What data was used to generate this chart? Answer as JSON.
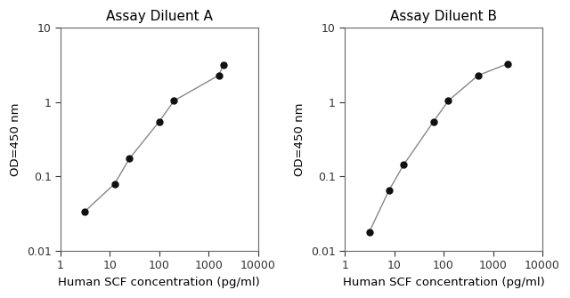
{
  "panel_A": {
    "title": "Assay Diluent A",
    "x": [
      3.13,
      12.5,
      25,
      100,
      200,
      1600,
      2000
    ],
    "y": [
      0.034,
      0.08,
      0.175,
      0.55,
      1.05,
      2.3,
      3.2
    ]
  },
  "panel_B": {
    "title": "Assay Diluent B",
    "x": [
      3.13,
      7.8,
      15.6,
      62.5,
      125,
      500,
      2000
    ],
    "y": [
      0.018,
      0.065,
      0.145,
      0.55,
      1.05,
      2.3,
      3.3
    ]
  },
  "xlabel": "Human SCF concentration (pg/ml)",
  "ylabel": "OD=450 nm",
  "xlim": [
    1,
    10000
  ],
  "ylim": [
    0.01,
    10
  ],
  "xticks": [
    1,
    10,
    100,
    1000,
    10000
  ],
  "xticklabels": [
    "1",
    "10",
    "100",
    "1000",
    "10000"
  ],
  "yticks": [
    0.01,
    0.1,
    1,
    10
  ],
  "yticklabels": [
    "0.01",
    "0.1",
    "1",
    "10"
  ],
  "line_color": "#888888",
  "marker_color": "#111111",
  "marker_size": 5,
  "background_color": "#ffffff",
  "title_fontsize": 11,
  "label_fontsize": 9.5,
  "tick_fontsize": 9
}
